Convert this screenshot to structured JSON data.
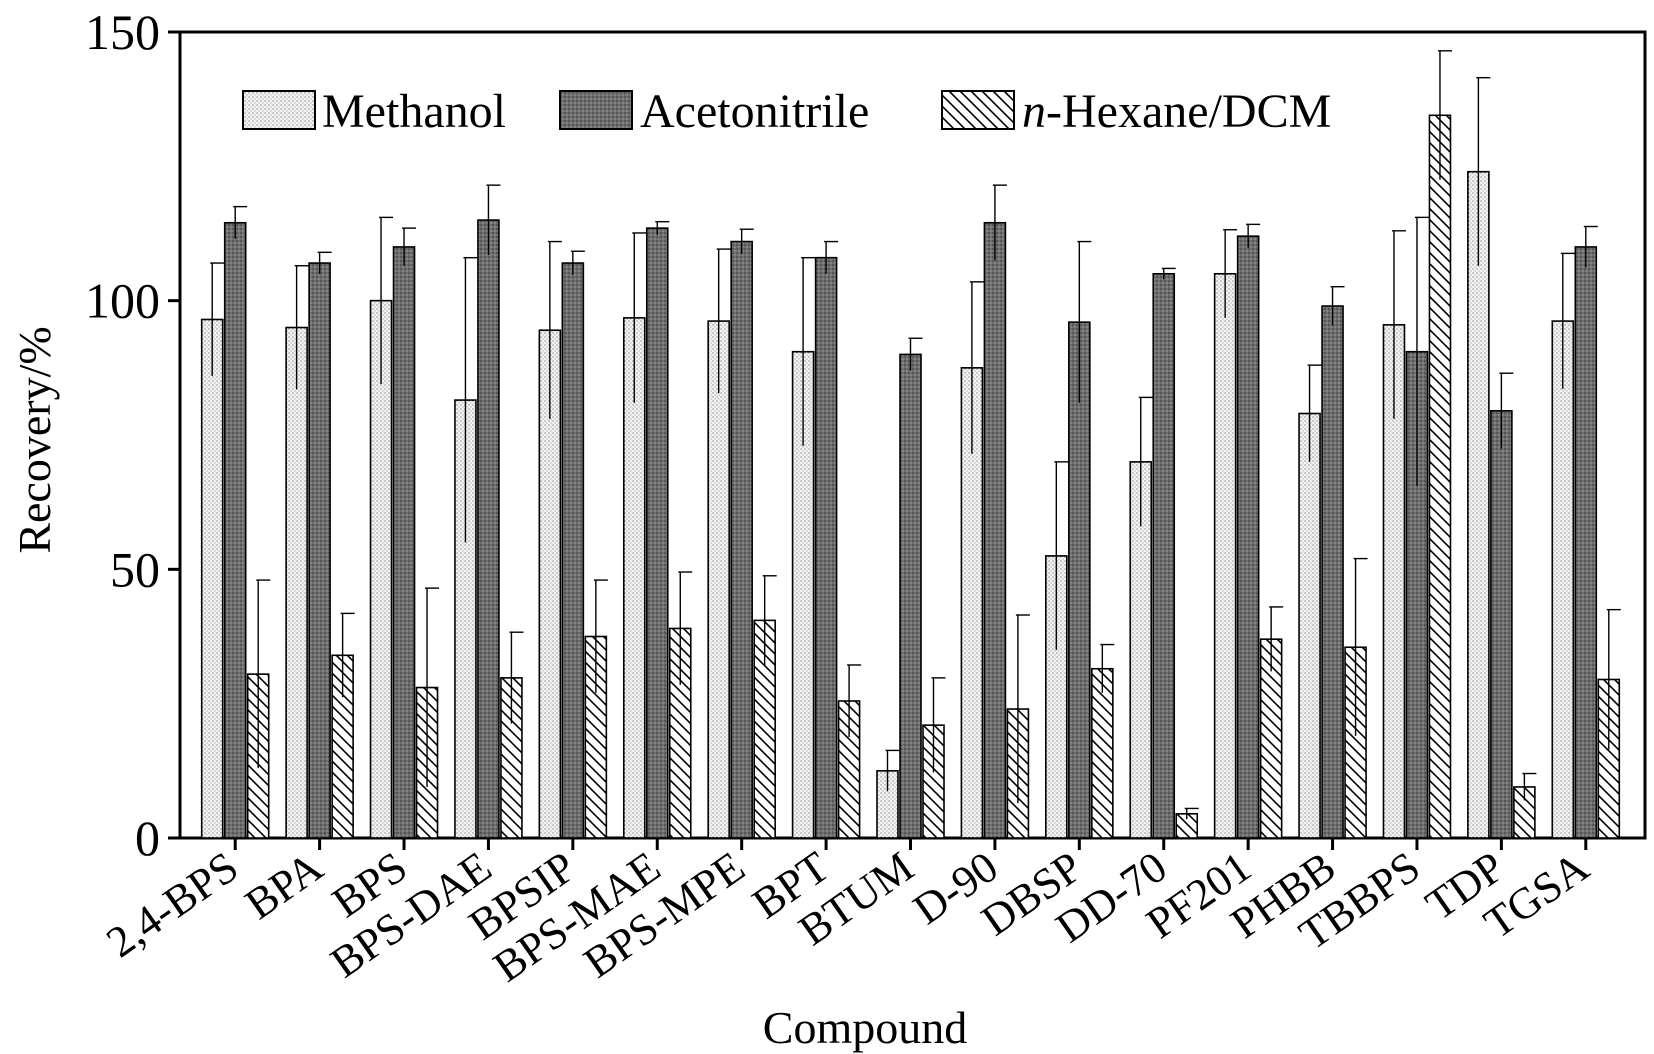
{
  "chart_data": {
    "type": "bar",
    "title": "",
    "xlabel": "Compound",
    "ylabel": "Recovery/%",
    "ylim": [
      0,
      150
    ],
    "yticks": [
      0,
      50,
      100,
      150
    ],
    "grid": false,
    "legend_position": "top",
    "categories": [
      "2,4-BPS",
      "BPA",
      "BPS",
      "BPS-DAE",
      "BPSIP",
      "BPS-MAE",
      "BPS-MPE",
      "BPT",
      "BTUM",
      "D-90",
      "DBSP",
      "DD-70",
      "PF201",
      "PHBB",
      "TBBPS",
      "TDP",
      "TGSA"
    ],
    "series": [
      {
        "name": "Methanol",
        "pattern": "dotted-light",
        "color": "#e6e6e6",
        "values": [
          96.5,
          95,
          100,
          81.5,
          94.5,
          96.8,
          96.2,
          90.5,
          12.5,
          87.5,
          52.5,
          70,
          105,
          79,
          95.5,
          124,
          96.2
        ],
        "errors": [
          10.5,
          11.5,
          15.5,
          26.5,
          16.5,
          15.8,
          13.4,
          17.5,
          3.8,
          16,
          17.5,
          12,
          8.2,
          9,
          17.5,
          17.5,
          12.6
        ]
      },
      {
        "name": "Acetonitrile",
        "pattern": "dotted-dark",
        "color": "#6e6e6e",
        "values": [
          114.5,
          107,
          110,
          115,
          107,
          113.5,
          111,
          108,
          90,
          114.5,
          96,
          105,
          112,
          99,
          90.5,
          79.5,
          110
        ],
        "errors": [
          3,
          2,
          3.5,
          6.5,
          2.2,
          1.2,
          2.3,
          3,
          3,
          7,
          15,
          1,
          2.2,
          3.6,
          25,
          7,
          3.8
        ]
      },
      {
        "name": "n-Hexane/DCM",
        "pattern": "hatched",
        "color": "#ffffff",
        "values": [
          30.5,
          34,
          28,
          29.8,
          37.5,
          39,
          40.5,
          25.5,
          21,
          24,
          31.5,
          4.5,
          37,
          35.5,
          134.5,
          9.5,
          29.5
        ],
        "errors": [
          17.5,
          7.8,
          18.5,
          8.5,
          10.5,
          10.5,
          8.3,
          6.7,
          8.8,
          17.5,
          4.5,
          1,
          6,
          16.5,
          12,
          2.5,
          13
        ]
      }
    ]
  }
}
